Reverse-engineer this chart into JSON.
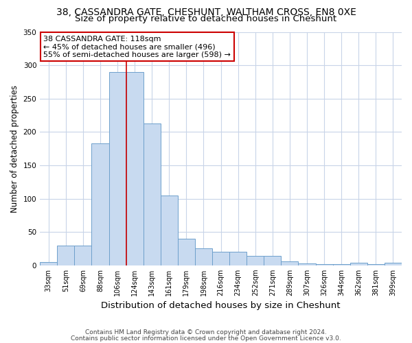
{
  "title": "38, CASSANDRA GATE, CHESHUNT, WALTHAM CROSS, EN8 0XE",
  "subtitle": "Size of property relative to detached houses in Cheshunt",
  "xlabel": "Distribution of detached houses by size in Cheshunt",
  "ylabel": "Number of detached properties",
  "categories": [
    "33sqm",
    "51sqm",
    "69sqm",
    "88sqm",
    "106sqm",
    "124sqm",
    "143sqm",
    "161sqm",
    "179sqm",
    "198sqm",
    "216sqm",
    "234sqm",
    "252sqm",
    "271sqm",
    "289sqm",
    "307sqm",
    "326sqm",
    "344sqm",
    "362sqm",
    "381sqm",
    "399sqm"
  ],
  "values": [
    5,
    30,
    30,
    183,
    290,
    290,
    213,
    105,
    40,
    25,
    20,
    20,
    14,
    14,
    6,
    3,
    2,
    2,
    4,
    2,
    4
  ],
  "bar_color": "#c8daf0",
  "bar_edge_color": "#6ea0cc",
  "property_line_x": 4.5,
  "property_line_color": "#cc0000",
  "annotation_text": "38 CASSANDRA GATE: 118sqm\n← 45% of detached houses are smaller (496)\n55% of semi-detached houses are larger (598) →",
  "annotation_box_color": "#ffffff",
  "annotation_box_edge": "#cc0000",
  "ylim": [
    0,
    350
  ],
  "yticks": [
    0,
    50,
    100,
    150,
    200,
    250,
    300,
    350
  ],
  "footer1": "Contains HM Land Registry data © Crown copyright and database right 2024.",
  "footer2": "Contains public sector information licensed under the Open Government Licence v3.0.",
  "bg_color": "#ffffff",
  "grid_color": "#c8d4e8",
  "title_fontsize": 10,
  "subtitle_fontsize": 9.5,
  "tick_fontsize": 7,
  "ylabel_fontsize": 8.5,
  "xlabel_fontsize": 9.5,
  "footer_fontsize": 6.5,
  "annotation_fontsize": 8
}
